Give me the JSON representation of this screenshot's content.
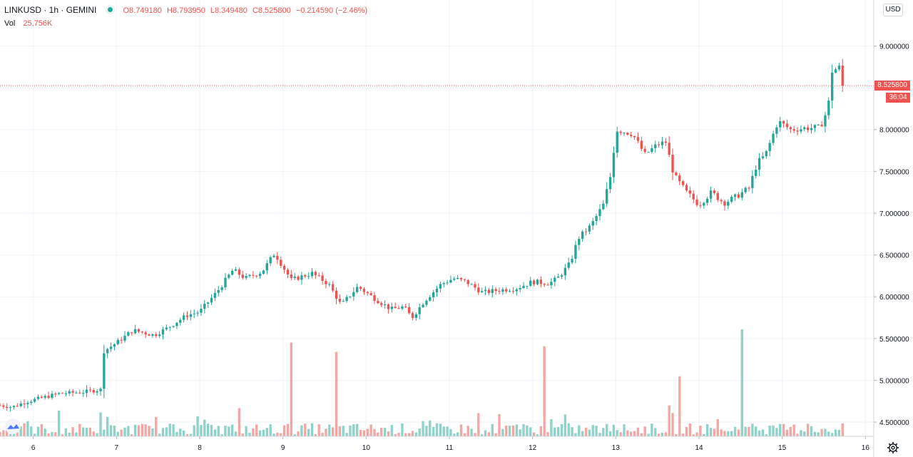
{
  "header": {
    "symbol": "LINKUSD · 1h · GEMINI",
    "open": "O8.749180",
    "high": "H8.793950",
    "low": "L8.349480",
    "close": "C8.525800",
    "change": "−0.214590 (−2.46%)",
    "vol_label": "Vol",
    "vol_value": "25.756K"
  },
  "currency": "USD",
  "last_price_label": "8.525800",
  "countdown": "36:04",
  "colors": {
    "up": "#26a69a",
    "down": "#ef5350",
    "up_vol": "#8fd2c9",
    "down_vol": "#f3a7a5"
  },
  "chart_data": {
    "type": "candlestick",
    "x_axis": {
      "ticks": [
        "6",
        "7",
        "8",
        "9",
        "10",
        "11",
        "12",
        "13",
        "14",
        "15",
        "16"
      ],
      "range_days": [
        5.6,
        16.1
      ]
    },
    "y_axis": {
      "ticks": [
        "4.500000",
        "5.000000",
        "5.500000",
        "6.000000",
        "6.500000",
        "7.000000",
        "7.500000",
        "8.000000",
        "8.500000",
        "9.000000"
      ],
      "range": [
        4.33,
        9.55
      ]
    },
    "last_price": 8.5258,
    "grid": true,
    "anchors": [
      [
        5.6,
        4.7
      ],
      [
        5.75,
        4.68
      ],
      [
        5.9,
        4.74
      ],
      [
        6.1,
        4.79
      ],
      [
        6.3,
        4.84
      ],
      [
        6.6,
        4.86
      ],
      [
        6.82,
        4.89
      ],
      [
        6.85,
        5.35
      ],
      [
        7.0,
        5.45
      ],
      [
        7.2,
        5.6
      ],
      [
        7.45,
        5.54
      ],
      [
        7.6,
        5.62
      ],
      [
        7.85,
        5.78
      ],
      [
        8.0,
        5.82
      ],
      [
        8.2,
        6.05
      ],
      [
        8.4,
        6.32
      ],
      [
        8.55,
        6.22
      ],
      [
        8.75,
        6.3
      ],
      [
        8.9,
        6.52
      ],
      [
        9.1,
        6.2
      ],
      [
        9.25,
        6.25
      ],
      [
        9.35,
        6.28
      ],
      [
        9.55,
        6.15
      ],
      [
        9.7,
        5.9
      ],
      [
        9.9,
        6.12
      ],
      [
        10.1,
        5.98
      ],
      [
        10.3,
        5.85
      ],
      [
        10.45,
        5.88
      ],
      [
        10.55,
        5.75
      ],
      [
        10.7,
        5.95
      ],
      [
        10.9,
        6.15
      ],
      [
        11.05,
        6.22
      ],
      [
        11.2,
        6.18
      ],
      [
        11.4,
        6.05
      ],
      [
        11.6,
        6.08
      ],
      [
        11.8,
        6.1
      ],
      [
        12.0,
        6.18
      ],
      [
        12.2,
        6.16
      ],
      [
        12.3,
        6.22
      ],
      [
        12.45,
        6.4
      ],
      [
        12.55,
        6.7
      ],
      [
        12.7,
        6.85
      ],
      [
        12.85,
        7.1
      ],
      [
        12.95,
        7.5
      ],
      [
        13.0,
        8.0
      ],
      [
        13.2,
        7.95
      ],
      [
        13.35,
        7.7
      ],
      [
        13.5,
        7.82
      ],
      [
        13.6,
        7.85
      ],
      [
        13.7,
        7.45
      ],
      [
        13.85,
        7.25
      ],
      [
        14.0,
        7.1
      ],
      [
        14.15,
        7.25
      ],
      [
        14.3,
        7.12
      ],
      [
        14.45,
        7.2
      ],
      [
        14.6,
        7.3
      ],
      [
        14.7,
        7.6
      ],
      [
        14.8,
        7.7
      ],
      [
        14.95,
        8.1
      ],
      [
        15.1,
        8.0
      ],
      [
        15.3,
        8.02
      ],
      [
        15.45,
        8.02
      ],
      [
        15.55,
        8.25
      ],
      [
        15.6,
        8.7
      ],
      [
        15.7,
        8.75
      ],
      [
        15.74,
        8.525
      ]
    ],
    "volume_spikes": [
      {
        "day": 9.09,
        "value": 1.0,
        "dir": "down"
      },
      {
        "day": 9.63,
        "value": 0.9,
        "dir": "down"
      },
      {
        "day": 12.15,
        "value": 0.96,
        "dir": "up"
      },
      {
        "day": 13.75,
        "value": 0.64,
        "dir": "down"
      },
      {
        "day": 14.53,
        "value": 1.14,
        "dir": "down"
      }
    ]
  }
}
